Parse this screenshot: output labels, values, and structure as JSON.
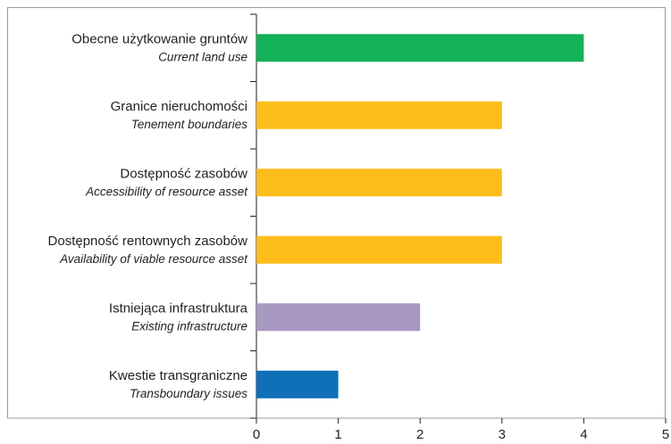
{
  "chart_data": {
    "type": "barh",
    "categories": [
      "Obecne użytkowanie gruntów",
      "Granice nieruchomości",
      "Dostępność zasobów",
      "Dostępność rentownych zasobów",
      "Istniejąca infrastruktura",
      "Kwestie transgraniczne"
    ],
    "subcategories": [
      "Current land use",
      "Tenement boundaries",
      "Accessibility of resource asset",
      "Availability of viable resource asset",
      "Existing infrastructure",
      "Transboundary issues"
    ],
    "values": [
      4,
      3,
      3,
      3,
      2,
      1
    ],
    "colors": [
      "#13b158",
      "#fdbd1b",
      "#fdbd1b",
      "#fdbd1b",
      "#a899c2",
      "#0f70b7"
    ],
    "xlim": [
      0,
      5
    ],
    "xticks": [
      0,
      1,
      2,
      3,
      4,
      5
    ]
  }
}
